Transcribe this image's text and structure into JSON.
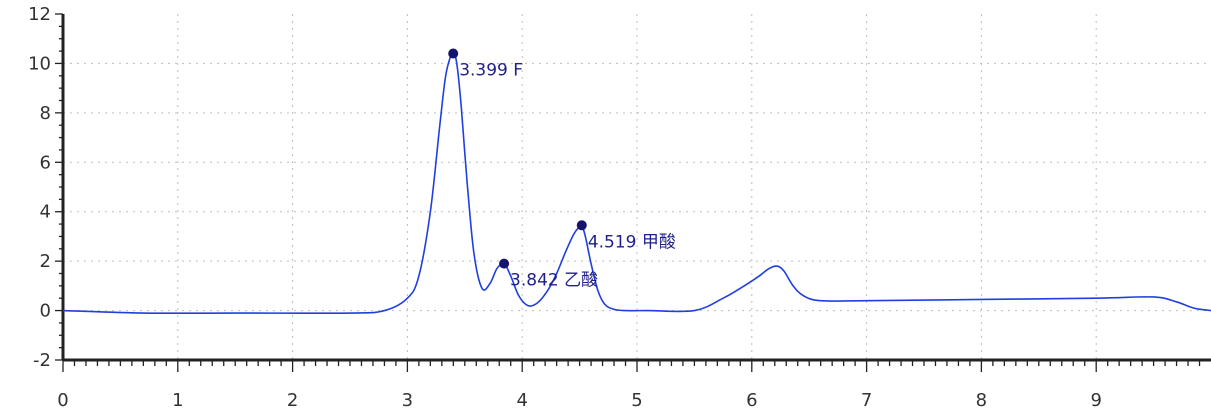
{
  "chart_data": {
    "type": "line",
    "title": "",
    "xlabel": "",
    "ylabel": "",
    "xlim": [
      0,
      10
    ],
    "ylim": [
      -2,
      12
    ],
    "x_ticks": [
      0,
      1,
      2,
      3,
      4,
      5,
      6,
      7,
      8,
      9
    ],
    "y_ticks": [
      -2,
      0,
      2,
      4,
      6,
      8,
      10,
      12
    ],
    "grid": true,
    "colors": {
      "trace": "#1f3fe0",
      "marker": "#14146e",
      "label": "#1f1f8a"
    },
    "series": [
      {
        "x": [
          0,
          0.7,
          1.5,
          2.5,
          2.8,
          3.0,
          3.1,
          3.2,
          3.28,
          3.33,
          3.37,
          3.399,
          3.43,
          3.47,
          3.52,
          3.58,
          3.65,
          3.72,
          3.78,
          3.842,
          3.9,
          3.97,
          4.05,
          4.13,
          4.22,
          4.3,
          4.38,
          4.45,
          4.5,
          4.519,
          4.55,
          4.6,
          4.66,
          4.72,
          4.8,
          4.9,
          5.1,
          5.5,
          5.75,
          5.9,
          6.05,
          6.15,
          6.22,
          6.28,
          6.36,
          6.45,
          6.6,
          7.0,
          8.0,
          9.0,
          9.5,
          9.7,
          9.85,
          10.0
        ],
        "y": [
          0.0,
          -0.1,
          -0.1,
          -0.1,
          0.0,
          0.5,
          1.4,
          4.0,
          7.4,
          9.4,
          10.2,
          10.4,
          10.0,
          8.2,
          5.2,
          2.3,
          0.9,
          1.1,
          1.7,
          1.9,
          1.4,
          0.6,
          0.2,
          0.3,
          0.8,
          1.5,
          2.4,
          3.1,
          3.4,
          3.45,
          3.0,
          1.9,
          0.8,
          0.25,
          0.05,
          0.0,
          0.0,
          0.0,
          0.5,
          0.9,
          1.35,
          1.7,
          1.8,
          1.6,
          1.0,
          0.6,
          0.4,
          0.4,
          0.45,
          0.5,
          0.55,
          0.35,
          0.1,
          0.0
        ]
      }
    ],
    "peaks": [
      {
        "x": 3.399,
        "y": 10.4,
        "label": "3.399 F"
      },
      {
        "x": 3.842,
        "y": 1.9,
        "label": "3.842 乙酸"
      },
      {
        "x": 4.519,
        "y": 3.45,
        "label": "4.519 甲酸"
      }
    ]
  }
}
